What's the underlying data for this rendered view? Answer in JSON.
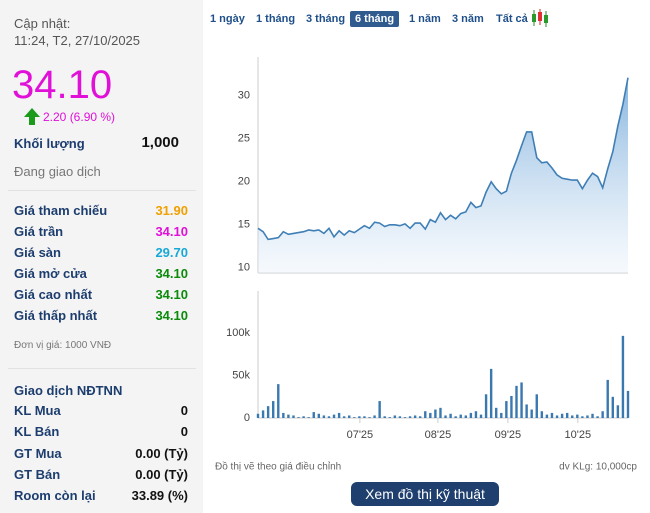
{
  "tabs": [
    "1 ngày",
    "1 tháng",
    "3 tháng",
    "6 tháng",
    "1 năm",
    "3 năm",
    "Tất cả"
  ],
  "active_tab": 3,
  "panel": {
    "updated_label": "Cập nhật:",
    "updated_time": "11:24, T2, 27/10/2025",
    "price": "34.10",
    "change": "2.20 (6.90 %)",
    "volume_label": "Khối lượng",
    "volume": "1,000",
    "status": "Đang giao dịch",
    "rows": [
      {
        "label": "Giá tham chiếu",
        "value": "31.90",
        "color": "#f0a000"
      },
      {
        "label": "Giá trần",
        "value": "34.10",
        "color": "#e010d8"
      },
      {
        "label": "Giá sàn",
        "value": "29.70",
        "color": "#18a8d8"
      },
      {
        "label": "Giá mở cửa",
        "value": "34.10",
        "color": "#0b8a0b"
      },
      {
        "label": "Giá cao nhất",
        "value": "34.10",
        "color": "#0b8a0b"
      },
      {
        "label": "Giá thấp nhất",
        "value": "34.10",
        "color": "#0b8a0b"
      }
    ],
    "unit_note": "Đơn vị giá: 1000 VNĐ",
    "foreign_title": "Giao dịch NĐTNN",
    "foreign_rows": [
      {
        "label": "KL Mua",
        "value": "0"
      },
      {
        "label": "KL Bán",
        "value": "0"
      },
      {
        "label": "GT Mua",
        "value": "0.00 (Tỷ)"
      },
      {
        "label": "GT Bán",
        "value": "0.00 (Tỷ)"
      },
      {
        "label": "Room còn lại",
        "value": "33.89 (%)"
      }
    ]
  },
  "footer_note": "Đồ thị vẽ theo giá điều chỉnh",
  "footer_unit": "dv KLg: 10,000cp",
  "button": "Xem đồ thị kỹ thuật",
  "chart_data": [
    {
      "type": "area",
      "color": "#3f7fb5",
      "values": [
        14.6,
        14.2,
        13.3,
        13.4,
        13.5,
        14.2,
        13.9,
        14.0,
        14.1,
        14.2,
        14.4,
        14.3,
        14.4,
        14.0,
        14.6,
        13.6,
        14.3,
        13.8,
        14.3,
        14.1,
        14.5,
        14.9,
        14.6,
        15.3,
        15.2,
        14.8,
        15.0,
        15.0,
        14.9,
        15.1,
        14.6,
        15.2,
        15.2,
        14.5,
        15.6,
        15.3,
        16.4,
        15.6,
        16.1,
        15.7,
        16.3,
        16.5,
        17.6,
        17.0,
        17.2,
        18.8,
        20.0,
        19.2,
        18.6,
        18.9,
        21.0,
        22.5,
        24.2,
        25.8,
        25.8,
        22.8,
        22.2,
        22.3,
        21.6,
        20.8,
        20.4,
        20.3,
        20.2,
        20.2,
        19.2,
        20.2,
        21.0,
        20.6,
        19.3,
        21.5,
        23.5,
        26.5,
        29.0,
        32.1
      ],
      "xlim": [
        0,
        73
      ],
      "ylim": [
        9.4,
        34.5
      ],
      "yticks": [
        10,
        15,
        20,
        25,
        30
      ],
      "grid": false
    },
    {
      "type": "bar",
      "color": "#3a78b0",
      "values": [
        5000,
        9000,
        14000,
        20000,
        40000,
        6000,
        4000,
        3000,
        1000,
        2000,
        1000,
        7000,
        5000,
        3000,
        2000,
        4000,
        6000,
        2000,
        3000,
        1000,
        2000,
        2000,
        1000,
        3000,
        20000,
        2000,
        1000,
        3000,
        2000,
        1000,
        2000,
        3000,
        2000,
        8000,
        6000,
        10000,
        12000,
        3000,
        5000,
        2000,
        4000,
        3000,
        6000,
        8000,
        4000,
        28000,
        58000,
        12000,
        6000,
        20000,
        26000,
        38000,
        42000,
        16000,
        10000,
        28000,
        8000,
        4000,
        6000,
        3000,
        5000,
        6000,
        3000,
        4000,
        2000,
        3000,
        5000,
        2000,
        8000,
        45000,
        25000,
        15000,
        97000,
        32000
      ],
      "xlim": [
        0,
        73
      ],
      "ylim": [
        0,
        150000
      ],
      "yticks": [
        0,
        {
          "value": 50000,
          "label": "50k"
        },
        {
          "value": 100000,
          "label": "100k"
        }
      ],
      "xticks": [
        {
          "value": 20.1,
          "label": "07'25"
        },
        {
          "value": 35.5,
          "label": "08'25"
        },
        {
          "value": 49.3,
          "label": "09'25"
        },
        {
          "value": 63.1,
          "label": "10'25"
        }
      ],
      "grid": false
    }
  ]
}
